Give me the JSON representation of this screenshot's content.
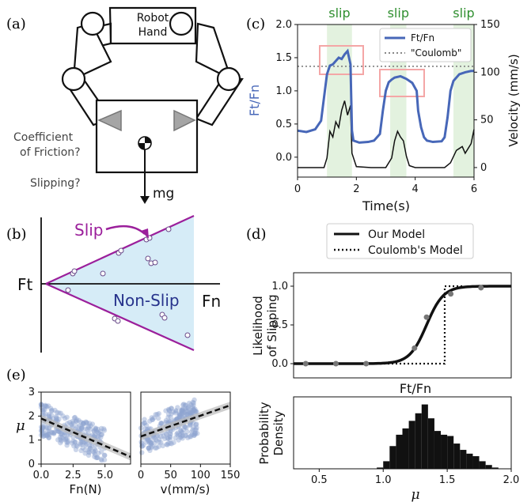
{
  "panel_labels": {
    "a": "(a)",
    "b": "(b)",
    "c": "(c)",
    "d": "(d)",
    "e": "(e)"
  },
  "panel_a": {
    "robot_hand_line1": "Robot",
    "robot_hand_line2": "Hand",
    "friction_line1": "Coefficient",
    "friction_line2": "of Friction?",
    "slipping": "Slipping?",
    "weight": "mg"
  },
  "panel_b": {
    "ylabel": "Ft",
    "xlabel": "Fn",
    "slip_label": "Slip",
    "nonslip_label": "Non-Slip",
    "colors": {
      "cone": "#d6ecf7",
      "cone_line": "#9b1f9b",
      "nonslip_text": "#27338c"
    }
  },
  "panel_c": {
    "ylabel_left": "Ft/Fn",
    "ylabel_right": "Velocity (mm/s)",
    "xlabel": "Time(s)",
    "slip_labels": [
      "slip",
      "slip",
      "slip"
    ],
    "legend": [
      "Ft/Fn",
      "\"Coulomb\""
    ],
    "x_ticks": [
      "0",
      "2",
      "4",
      "6"
    ],
    "y_left_ticks": [
      "0.0",
      "0.5",
      "1.0",
      "1.5",
      "2.0"
    ],
    "y_right_ticks": [
      "0",
      "50",
      "100",
      "150"
    ],
    "colors": {
      "ratio": "#4767b8",
      "velocity": "#111111",
      "slip_band": "#e3f2df",
      "slip_text": "#2f8f2f",
      "box": "#f4a6a6"
    }
  },
  "panel_d": {
    "legend": [
      "Our Model",
      "Coulomb's Model"
    ],
    "top_ylabel_line1": "Likelihood",
    "top_ylabel_line2": "of Slipping",
    "top_y_ticks": [
      "0.0",
      "0.5",
      "1.0"
    ],
    "top_xlabel": "Ft/Fn",
    "bottom_ylabel_line1": "Probability",
    "bottom_ylabel_line2": "Density",
    "bottom_xlabel": "μ",
    "bottom_x_ticks": [
      "0.5",
      "1.0",
      "1.5",
      "2.0"
    ]
  },
  "panel_e": {
    "ylabel": "μ",
    "y_ticks": [
      "0",
      "1",
      "2",
      "3"
    ],
    "left_xlabel": "Fn(N)",
    "left_x_ticks": [
      "0.0",
      "2.5",
      "5.0"
    ],
    "right_xlabel": "v(mm/s)",
    "right_x_ticks": [
      "0",
      "50",
      "100",
      "150"
    ]
  },
  "chart_data": [
    {
      "id": "c",
      "type": "line",
      "xlabel": "Time(s)",
      "ylabel": "Ft/Fn",
      "ylabel_right": "Velocity (mm/s)",
      "xlim": [
        0,
        6
      ],
      "ylim": [
        -0.3,
        2.0
      ],
      "ylim_right": [
        -10,
        150
      ],
      "slip_intervals": [
        [
          1.0,
          1.85
        ],
        [
          3.15,
          3.7
        ],
        [
          5.3,
          6.0
        ]
      ],
      "coulomb_level": 1.37,
      "series": [
        {
          "name": "Ft/Fn",
          "x": [
            0,
            0.3,
            0.6,
            0.8,
            0.9,
            1.0,
            1.1,
            1.2,
            1.3,
            1.4,
            1.5,
            1.6,
            1.7,
            1.8,
            1.85,
            1.9,
            2.1,
            2.4,
            2.6,
            2.8,
            2.9,
            3.0,
            3.1,
            3.2,
            3.3,
            3.5,
            3.7,
            3.9,
            4.05,
            4.1,
            4.2,
            4.3,
            4.4,
            4.6,
            4.9,
            5.0,
            5.1,
            5.2,
            5.3,
            5.5,
            5.7,
            5.9,
            6.0
          ],
          "y": [
            0.4,
            0.38,
            0.42,
            0.55,
            0.9,
            1.25,
            1.38,
            1.4,
            1.45,
            1.5,
            1.48,
            1.55,
            1.6,
            1.4,
            0.4,
            0.25,
            0.22,
            0.23,
            0.25,
            0.35,
            0.7,
            1.0,
            1.13,
            1.17,
            1.2,
            1.22,
            1.18,
            1.12,
            1.0,
            0.7,
            0.45,
            0.3,
            0.25,
            0.23,
            0.24,
            0.3,
            0.6,
            1.0,
            1.15,
            1.25,
            1.28,
            1.3,
            1.3
          ]
        },
        {
          "name": "velocity",
          "x": [
            0,
            0.5,
            0.9,
            1.0,
            1.1,
            1.2,
            1.3,
            1.4,
            1.5,
            1.6,
            1.7,
            1.8,
            1.85,
            2.0,
            2.5,
            3.0,
            3.2,
            3.3,
            3.4,
            3.5,
            3.6,
            3.7,
            3.8,
            4.0,
            4.5,
            5.0,
            5.2,
            5.4,
            5.5,
            5.6,
            5.7,
            5.8,
            5.9,
            6.0
          ],
          "y": [
            0,
            0,
            0,
            10,
            38,
            32,
            48,
            42,
            60,
            70,
            55,
            65,
            15,
            1,
            0,
            0,
            10,
            28,
            38,
            32,
            28,
            12,
            2,
            0,
            0,
            0,
            5,
            18,
            20,
            22,
            15,
            20,
            25,
            40
          ]
        }
      ]
    },
    {
      "id": "d-top",
      "type": "line",
      "xlabel": "Ft/Fn",
      "ylabel": "Likelihood of Slipping",
      "ylim": [
        0,
        1.0
      ],
      "series": [
        {
          "name": "Our Model",
          "logistic_center": 1.3,
          "logistic_scale": 0.07
        },
        {
          "name": "Coulomb's Model",
          "step_at": 1.45
        }
      ],
      "points": {
        "x": [
          0.3,
          0.55,
          0.8,
          1.2,
          1.3,
          1.5,
          1.75
        ],
        "y": [
          0.0,
          0.0,
          0.0,
          0.2,
          0.6,
          0.9,
          0.98
        ]
      }
    },
    {
      "id": "d-bottom",
      "type": "bar",
      "xlabel": "μ",
      "ylabel": "Probability Density",
      "xlim": [
        0.3,
        2.0
      ],
      "bin_edges": [
        0.95,
        1.0,
        1.05,
        1.1,
        1.15,
        1.2,
        1.25,
        1.3,
        1.35,
        1.4,
        1.45,
        1.5,
        1.55,
        1.6,
        1.65,
        1.7,
        1.75,
        1.8,
        1.85,
        1.9
      ],
      "values": [
        0.05,
        0.3,
        0.9,
        1.35,
        1.6,
        1.9,
        2.2,
        2.55,
        2.0,
        1.5,
        1.35,
        1.3,
        1.0,
        0.75,
        0.6,
        0.5,
        0.3,
        0.15,
        0.05
      ]
    },
    {
      "id": "e-left",
      "type": "scatter",
      "xlabel": "Fn(N)",
      "ylabel": "μ",
      "xlim": [
        0,
        7
      ],
      "ylim": [
        0,
        3
      ],
      "fit": {
        "x": [
          0,
          7
        ],
        "y": [
          1.9,
          0.3
        ]
      }
    },
    {
      "id": "e-right",
      "type": "scatter",
      "xlabel": "v(mm/s)",
      "xlim": [
        0,
        150
      ],
      "ylim": [
        0,
        3
      ],
      "fit": {
        "x": [
          0,
          150
        ],
        "y": [
          1.15,
          2.45
        ]
      }
    }
  ]
}
